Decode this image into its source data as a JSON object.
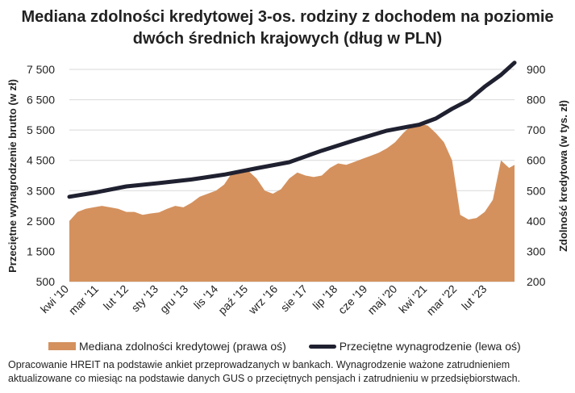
{
  "title_line1": "Mediana zdolności kredytowej 3-os. rodziny z dochodem na poziomie",
  "title_line2": "dwóch średnich krajowych (dług w PLN)",
  "left_axis_title": "Przeciętne wynagrodzenie brutto (w zł)",
  "right_axis_title": "Zdolność kredytowa (w tys. zł)",
  "legend_area": "Mediana zdolności kredytowej (prawa oś)",
  "legend_line": "Przeciętne wynagrodzenie (lewa oś)",
  "note_line1": "Opracowanie HREIT na podstawie ankiet przeprowadzanych w bankach. Wynagrodzenie ważone zatrudnieniem",
  "note_line2": "aktualizowane co miesiąc na podstawie danych GUS o przeciętnych pensjach i zatrudnieniu w przedsiębiorstwach.",
  "colors": {
    "area": "#D4915E",
    "line": "#1F2030",
    "grid": "#D9D9D9"
  },
  "chart_data": {
    "type": "area+line",
    "x_range": [
      "2010-04",
      "2023-12"
    ],
    "left_axis": {
      "ylim": [
        500,
        7500
      ],
      "ticks": [
        500,
        1500,
        2500,
        3500,
        4500,
        5500,
        6500,
        7500
      ],
      "tick_labels": [
        "500",
        "1 500",
        "2 500",
        "3 500",
        "4 500",
        "5 500",
        "6 500",
        "7 500"
      ]
    },
    "right_axis": {
      "ylim": [
        200,
        900
      ],
      "ticks": [
        200,
        300,
        400,
        500,
        600,
        700,
        800,
        900
      ],
      "tick_labels": [
        "200",
        "300",
        "400",
        "500",
        "600",
        "700",
        "800",
        "900"
      ]
    },
    "x_ticks": [
      {
        "label": "kwi '10",
        "date": "2010-04"
      },
      {
        "label": "mar '11",
        "date": "2011-03"
      },
      {
        "label": "lut '12",
        "date": "2012-02"
      },
      {
        "label": "sty '13",
        "date": "2013-01"
      },
      {
        "label": "gru '13",
        "date": "2013-12"
      },
      {
        "label": "lis '14",
        "date": "2014-11"
      },
      {
        "label": "paź '15",
        "date": "2015-10"
      },
      {
        "label": "wrz '16",
        "date": "2016-09"
      },
      {
        "label": "sie '17",
        "date": "2017-08"
      },
      {
        "label": "lip '18",
        "date": "2018-07"
      },
      {
        "label": "cze '19",
        "date": "2019-06"
      },
      {
        "label": "maj '20",
        "date": "2020-05"
      },
      {
        "label": "kwi '21",
        "date": "2021-04"
      },
      {
        "label": "mar '22",
        "date": "2022-03"
      },
      {
        "label": "lut '23",
        "date": "2023-02"
      }
    ],
    "series": [
      {
        "name": "Mediana zdolności kredytowej (prawa oś)",
        "axis": "right",
        "kind": "area",
        "points": [
          [
            "2010-04",
            400
          ],
          [
            "2010-07",
            430
          ],
          [
            "2010-10",
            440
          ],
          [
            "2011-01",
            445
          ],
          [
            "2011-04",
            450
          ],
          [
            "2011-07",
            445
          ],
          [
            "2011-10",
            440
          ],
          [
            "2012-01",
            430
          ],
          [
            "2012-04",
            430
          ],
          [
            "2012-07",
            420
          ],
          [
            "2012-10",
            425
          ],
          [
            "2013-01",
            428
          ],
          [
            "2013-04",
            440
          ],
          [
            "2013-07",
            450
          ],
          [
            "2013-10",
            445
          ],
          [
            "2014-01",
            460
          ],
          [
            "2014-04",
            480
          ],
          [
            "2014-07",
            490
          ],
          [
            "2014-10",
            500
          ],
          [
            "2015-01",
            520
          ],
          [
            "2015-04",
            560
          ],
          [
            "2015-07",
            570
          ],
          [
            "2015-10",
            565
          ],
          [
            "2016-01",
            540
          ],
          [
            "2016-04",
            500
          ],
          [
            "2016-07",
            490
          ],
          [
            "2016-10",
            505
          ],
          [
            "2017-01",
            540
          ],
          [
            "2017-04",
            560
          ],
          [
            "2017-07",
            550
          ],
          [
            "2017-10",
            545
          ],
          [
            "2018-01",
            550
          ],
          [
            "2018-04",
            575
          ],
          [
            "2018-07",
            590
          ],
          [
            "2018-10",
            585
          ],
          [
            "2019-01",
            595
          ],
          [
            "2019-04",
            605
          ],
          [
            "2019-07",
            615
          ],
          [
            "2019-10",
            625
          ],
          [
            "2020-01",
            640
          ],
          [
            "2020-04",
            660
          ],
          [
            "2020-07",
            690
          ],
          [
            "2020-10",
            715
          ],
          [
            "2021-01",
            720
          ],
          [
            "2021-04",
            715
          ],
          [
            "2021-07",
            690
          ],
          [
            "2021-10",
            660
          ],
          [
            "2022-01",
            600
          ],
          [
            "2022-04",
            420
          ],
          [
            "2022-07",
            405
          ],
          [
            "2022-10",
            410
          ],
          [
            "2023-01",
            430
          ],
          [
            "2023-04",
            470
          ],
          [
            "2023-07",
            600
          ],
          [
            "2023-10",
            575
          ],
          [
            "2023-12",
            585
          ]
        ]
      },
      {
        "name": "Przeciętne wynagrodzenie (lewa oś)",
        "axis": "left",
        "kind": "line",
        "points": [
          [
            "2010-04",
            3300
          ],
          [
            "2011-01",
            3430
          ],
          [
            "2012-01",
            3640
          ],
          [
            "2013-01",
            3750
          ],
          [
            "2014-01",
            3870
          ],
          [
            "2015-01",
            4030
          ],
          [
            "2016-01",
            4240
          ],
          [
            "2017-01",
            4440
          ],
          [
            "2018-01",
            4820
          ],
          [
            "2019-01",
            5160
          ],
          [
            "2020-01",
            5480
          ],
          [
            "2021-01",
            5680
          ],
          [
            "2021-07",
            5880
          ],
          [
            "2022-01",
            6200
          ],
          [
            "2022-07",
            6480
          ],
          [
            "2023-01",
            6930
          ],
          [
            "2023-07",
            7320
          ],
          [
            "2023-12",
            7720
          ]
        ]
      }
    ]
  }
}
